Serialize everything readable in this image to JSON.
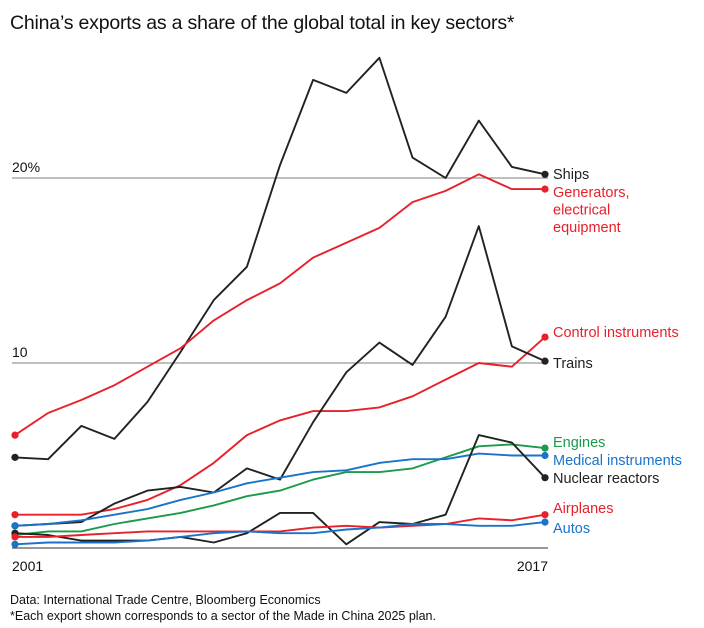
{
  "title": "China’s exports as a share of the global total in key sectors*",
  "source": "Data: International Trade Centre, Bloomberg Economics",
  "footnote": "*Each export shown corresponds to a sector of the Made in China 2025 plan.",
  "chart_data": {
    "type": "line",
    "x": [
      2001,
      2002,
      2003,
      2004,
      2005,
      2006,
      2007,
      2008,
      2009,
      2010,
      2011,
      2012,
      2013,
      2014,
      2015,
      2016,
      2017
    ],
    "x_tick_labels": [
      "2001",
      "2017"
    ],
    "y_ticks": [
      {
        "value": 10,
        "label": "10"
      },
      {
        "value": 20,
        "label": "20%"
      }
    ],
    "ylim": [
      0,
      27.5
    ],
    "grid": "horizontal at 10 and 20",
    "series": [
      {
        "name": "Ships",
        "color": "#222222",
        "label_lines": [
          "Ships"
        ],
        "values": [
          4.9,
          4.8,
          6.6,
          5.9,
          7.9,
          10.6,
          13.4,
          15.2,
          20.7,
          25.3,
          24.6,
          26.5,
          21.1,
          20.0,
          23.1,
          20.6,
          20.2
        ]
      },
      {
        "name": "Generators, electrical equipment",
        "color": "#e8202a",
        "label_lines": [
          "Generators,",
          "electrical",
          "equipment"
        ],
        "values": [
          6.1,
          7.3,
          8.0,
          8.8,
          9.8,
          10.8,
          12.3,
          13.4,
          14.3,
          15.7,
          16.5,
          17.3,
          18.7,
          19.3,
          20.2,
          19.4,
          19.4
        ]
      },
      {
        "name": "Control instruments",
        "color": "#e8202a",
        "label_lines": [
          "Control instruments"
        ],
        "values": [
          1.8,
          1.8,
          1.8,
          2.1,
          2.6,
          3.4,
          4.6,
          6.1,
          6.9,
          7.4,
          7.4,
          7.6,
          8.2,
          9.1,
          10.0,
          9.8,
          11.4
        ]
      },
      {
        "name": "Trains",
        "color": "#222222",
        "label_lines": [
          "Trains"
        ],
        "values": [
          1.2,
          1.3,
          1.4,
          2.4,
          3.1,
          3.3,
          3.0,
          4.3,
          3.7,
          6.8,
          9.5,
          11.1,
          9.9,
          12.5,
          17.4,
          10.9,
          10.1
        ]
      },
      {
        "name": "Engines",
        "color": "#1a9a4a",
        "label_lines": [
          "Engines"
        ],
        "values": [
          0.7,
          0.9,
          0.9,
          1.3,
          1.6,
          1.9,
          2.3,
          2.8,
          3.1,
          3.7,
          4.1,
          4.1,
          4.3,
          4.9,
          5.5,
          5.6,
          5.4
        ]
      },
      {
        "name": "Medical instruments",
        "color": "#1a73c9",
        "label_lines": [
          "Medical instruments"
        ],
        "values": [
          1.2,
          1.3,
          1.5,
          1.8,
          2.1,
          2.6,
          3.0,
          3.5,
          3.8,
          4.1,
          4.2,
          4.6,
          4.8,
          4.8,
          5.1,
          5.0,
          5.0
        ]
      },
      {
        "name": "Nuclear reactors",
        "color": "#222222",
        "label_lines": [
          "Nuclear reactors"
        ],
        "values": [
          0.8,
          0.7,
          0.4,
          0.4,
          0.4,
          0.6,
          0.3,
          0.8,
          1.9,
          1.9,
          0.2,
          1.4,
          1.3,
          1.8,
          6.1,
          5.7,
          3.8
        ]
      },
      {
        "name": "Airplanes",
        "color": "#e8202a",
        "label_lines": [
          "Airplanes"
        ],
        "values": [
          0.6,
          0.6,
          0.7,
          0.8,
          0.9,
          0.9,
          0.9,
          0.9,
          0.9,
          1.1,
          1.2,
          1.1,
          1.2,
          1.3,
          1.6,
          1.5,
          1.8
        ]
      },
      {
        "name": "Autos",
        "color": "#1a73c9",
        "label_lines": [
          "Autos"
        ],
        "values": [
          0.2,
          0.3,
          0.3,
          0.3,
          0.4,
          0.6,
          0.8,
          0.9,
          0.8,
          0.8,
          1.0,
          1.1,
          1.3,
          1.3,
          1.2,
          1.2,
          1.4
        ]
      }
    ]
  }
}
